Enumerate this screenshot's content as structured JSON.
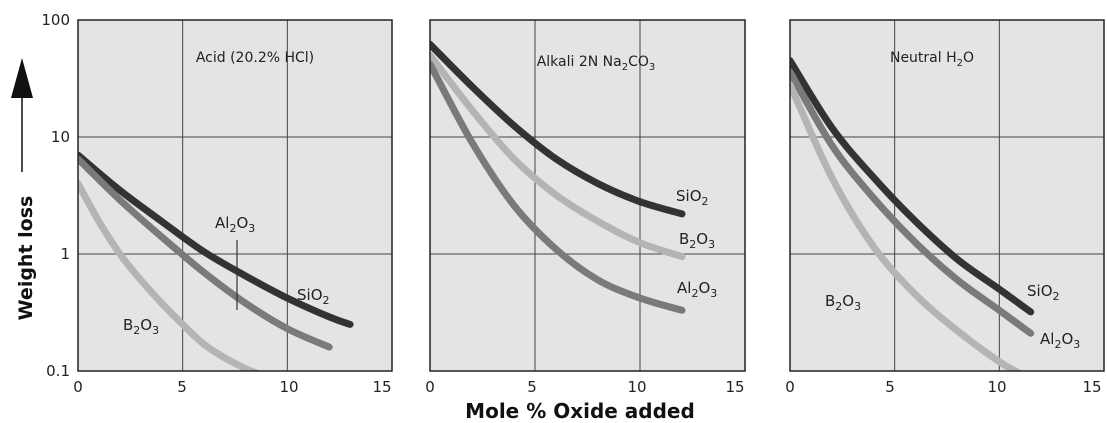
{
  "figure": {
    "ylabel": "Weight loss",
    "xlabel": "Mole % Oxide added"
  },
  "chart_data": [
    {
      "type": "line",
      "title": "Acid (20.2% HCl)",
      "xlim": [
        0,
        15
      ],
      "ylim": [
        0.1,
        100
      ],
      "yscale": "log",
      "x_ticks": [
        "0",
        "5",
        "10",
        "15"
      ],
      "y_ticks": [
        "0.1",
        "1",
        "10",
        "100"
      ],
      "grid": true,
      "series": [
        {
          "name": "SiO2",
          "label_text": [
            "SiO",
            "2",
            ""
          ],
          "color": "#333333",
          "x": [
            0,
            2,
            4,
            6,
            8,
            10,
            12,
            13
          ],
          "y": [
            7,
            3.5,
            1.9,
            1.05,
            0.65,
            0.42,
            0.29,
            0.25
          ]
        },
        {
          "name": "Al2O3",
          "label_text": [
            "Al",
            "2",
            "O",
            "3",
            ""
          ],
          "color": "#7a7a7a",
          "x": [
            0,
            2,
            4,
            6,
            8,
            10,
            12
          ],
          "y": [
            6.5,
            2.9,
            1.4,
            0.7,
            0.38,
            0.23,
            0.16
          ]
        },
        {
          "name": "B2O3",
          "label_text": [
            "B",
            "2",
            "O",
            "3",
            ""
          ],
          "color": "#b4b4b4",
          "x": [
            0,
            1,
            2,
            3,
            4,
            5,
            6,
            7,
            8,
            8.6
          ],
          "y": [
            4,
            1.9,
            1.0,
            0.6,
            0.38,
            0.25,
            0.17,
            0.13,
            0.105,
            0.095
          ]
        }
      ]
    },
    {
      "type": "line",
      "title": [
        "Alkali 2N Na",
        "2",
        "CO",
        "3",
        ""
      ],
      "xlim": [
        0,
        15
      ],
      "ylim": [
        0.1,
        100
      ],
      "yscale": "log",
      "x_ticks": [
        "0",
        "5",
        "10",
        "15"
      ],
      "grid": true,
      "series": [
        {
          "name": "SiO2",
          "label_text": [
            "SiO",
            "2",
            ""
          ],
          "color": "#333333",
          "x": [
            0,
            2,
            4,
            6,
            8,
            10,
            12
          ],
          "y": [
            62,
            27,
            12.5,
            6.5,
            4.0,
            2.8,
            2.2
          ]
        },
        {
          "name": "B2O3",
          "label_text": [
            "B",
            "2",
            "O",
            "3",
            ""
          ],
          "color": "#b4b4b4",
          "x": [
            0,
            2,
            4,
            6,
            8,
            10,
            12
          ],
          "y": [
            50,
            17,
            6.5,
            3.2,
            1.9,
            1.25,
            0.95
          ]
        },
        {
          "name": "Al2O3",
          "label_text": [
            "Al",
            "2",
            "O",
            "3",
            ""
          ],
          "color": "#7a7a7a",
          "x": [
            0,
            2,
            4,
            6,
            8,
            10,
            12
          ],
          "y": [
            42,
            9,
            2.6,
            1.1,
            0.6,
            0.42,
            0.33
          ]
        }
      ]
    },
    {
      "type": "line",
      "title": [
        "Neutral H",
        "2",
        "O",
        ""
      ],
      "xlim": [
        0,
        15
      ],
      "ylim": [
        0.1,
        100
      ],
      "yscale": "log",
      "x_ticks": [
        "0",
        "5",
        "10",
        "15"
      ],
      "grid": true,
      "series": [
        {
          "name": "SiO2",
          "label_text": [
            "SiO",
            "2",
            ""
          ],
          "color": "#333333",
          "x": [
            0,
            2,
            4,
            6,
            8,
            10,
            11.5
          ],
          "y": [
            45,
            12,
            4.5,
            1.9,
            0.9,
            0.5,
            0.32
          ]
        },
        {
          "name": "Al2O3",
          "label_text": [
            "Al",
            "2",
            "O",
            "3",
            ""
          ],
          "color": "#7a7a7a",
          "x": [
            0,
            2,
            4,
            6,
            8,
            10,
            11.5
          ],
          "y": [
            36,
            8.5,
            3.0,
            1.25,
            0.6,
            0.33,
            0.21
          ]
        },
        {
          "name": "B2O3",
          "label_text": [
            "B",
            "2",
            "O",
            "3",
            ""
          ],
          "color": "#b4b4b4",
          "x": [
            0,
            2,
            4,
            6,
            8,
            10,
            11
          ],
          "y": [
            28,
            4.5,
            1.15,
            0.45,
            0.22,
            0.12,
            0.095
          ]
        }
      ]
    }
  ]
}
